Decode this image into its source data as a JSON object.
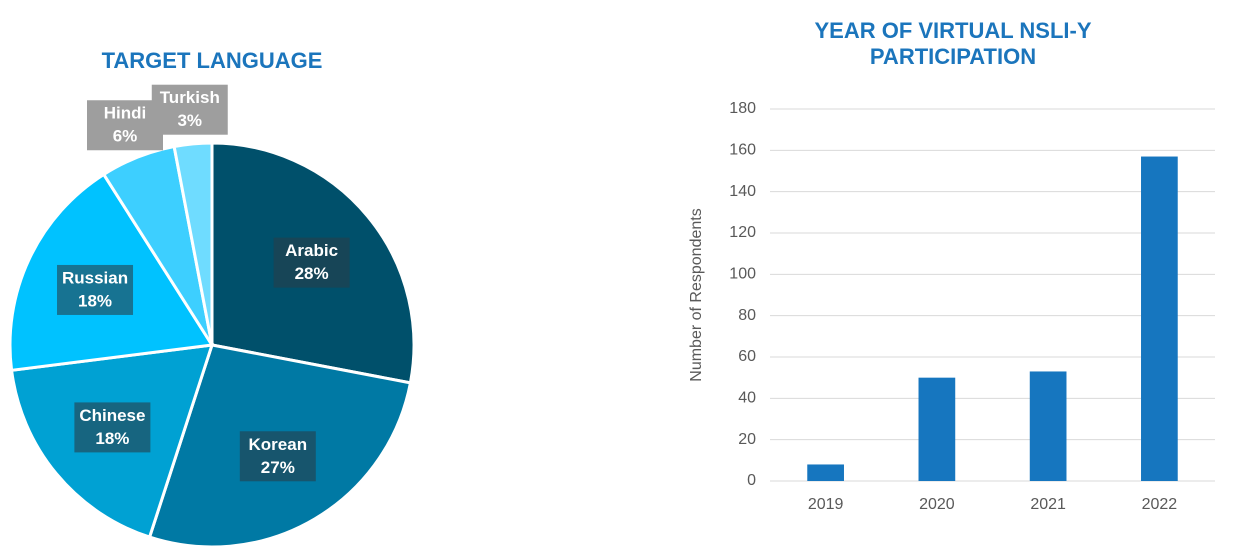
{
  "chart_data": [
    {
      "type": "pie",
      "title": "TARGET LANGUAGE",
      "categories": [
        "Arabic",
        "Korean",
        "Chinese",
        "Russian",
        "Hindi",
        "Turkish"
      ],
      "values": [
        28,
        27,
        18,
        18,
        6,
        3
      ],
      "value_labels": [
        "28%",
        "27%",
        "18%",
        "18%",
        "6%",
        "3%"
      ],
      "colors": [
        "#00506b",
        "#0079a4",
        "#00a1d3",
        "#00c2ff",
        "#3dcfff",
        "#6fdcff"
      ]
    },
    {
      "type": "bar",
      "title": "YEAR OF VIRTUAL NSLI-Y PARTICIPATION",
      "ylabel": "Number of Respondents",
      "categories": [
        "2019",
        "2020",
        "2021",
        "2022"
      ],
      "values": [
        8,
        50,
        53,
        157
      ],
      "color": "#1676bf",
      "ylim": [
        0,
        180
      ],
      "yticks": [
        0,
        20,
        40,
        60,
        80,
        100,
        120,
        140,
        160,
        180
      ],
      "grid": true
    }
  ]
}
